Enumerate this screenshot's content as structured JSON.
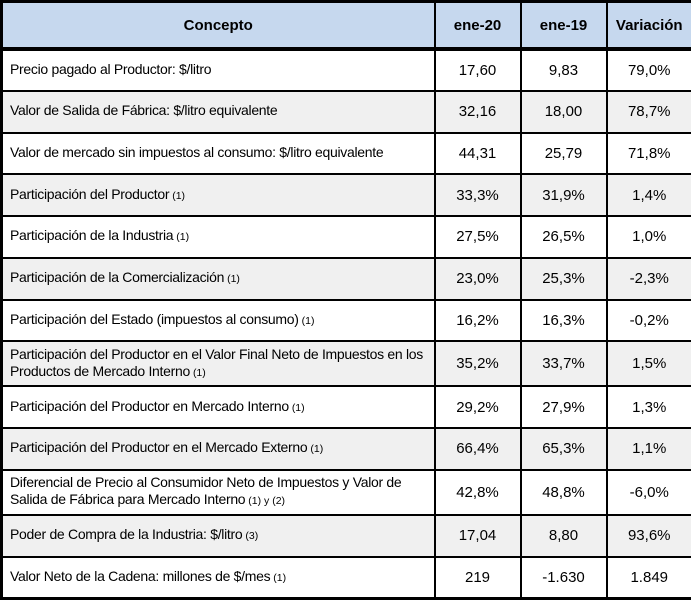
{
  "colors": {
    "header_bg": "#C6D8EE",
    "alt_row_bg": "#F0F0F0",
    "border": "#000000",
    "text": "#000000"
  },
  "chart_data": {
    "type": "table",
    "columns": [
      "Concepto",
      "ene-20",
      "ene-19",
      "Variación"
    ],
    "rows": [
      {
        "label": "Precio pagado al Productor: $/litro",
        "note": "",
        "values": [
          "17,60",
          "9,83",
          "79,0%"
        ]
      },
      {
        "label": "Valor de Salida de Fábrica: $/litro equivalente",
        "note": "",
        "values": [
          "32,16",
          "18,00",
          "78,7%"
        ]
      },
      {
        "label": "Valor de mercado sin impuestos al consumo: $/litro equivalente",
        "note": "",
        "values": [
          "44,31",
          "25,79",
          "71,8%"
        ]
      },
      {
        "label": "Participación del Productor",
        "note": "(1)",
        "values": [
          "33,3%",
          "31,9%",
          "1,4%"
        ]
      },
      {
        "label": "Participación de la Industria",
        "note": "(1)",
        "values": [
          "27,5%",
          "26,5%",
          "1,0%"
        ]
      },
      {
        "label": "Participación de la Comercialización",
        "note": "(1)",
        "values": [
          "23,0%",
          "25,3%",
          "-2,3%"
        ]
      },
      {
        "label": "Participación del Estado (impuestos al consumo)",
        "note": "(1)",
        "values": [
          "16,2%",
          "16,3%",
          "-0,2%"
        ]
      },
      {
        "label": "Participación del Productor en el Valor Final Neto de Impuestos en los Productos de Mercado Interno",
        "note": "(1)",
        "values": [
          "35,2%",
          "33,7%",
          "1,5%"
        ]
      },
      {
        "label": "Participación del Productor en Mercado Interno",
        "note": "(1)",
        "values": [
          "29,2%",
          "27,9%",
          "1,3%"
        ]
      },
      {
        "label": "Participación del Productor en el Mercado Externo",
        "note": "(1)",
        "values": [
          "66,4%",
          "65,3%",
          "1,1%"
        ]
      },
      {
        "label": "Diferencial de Precio al Consumidor Neto de Impuestos y Valor de Salida de Fábrica para Mercado Interno",
        "note": "(1) y (2)",
        "values": [
          "42,8%",
          "48,8%",
          "-6,0%"
        ]
      },
      {
        "label": "Poder de Compra de la Industria: $/litro",
        "note": "(3)",
        "values": [
          "17,04",
          "8,80",
          "93,6%"
        ]
      },
      {
        "label": "Valor Neto de la Cadena: millones de $/mes",
        "note": "(1)",
        "values": [
          "219",
          "-1.630",
          "1.849"
        ]
      }
    ]
  }
}
